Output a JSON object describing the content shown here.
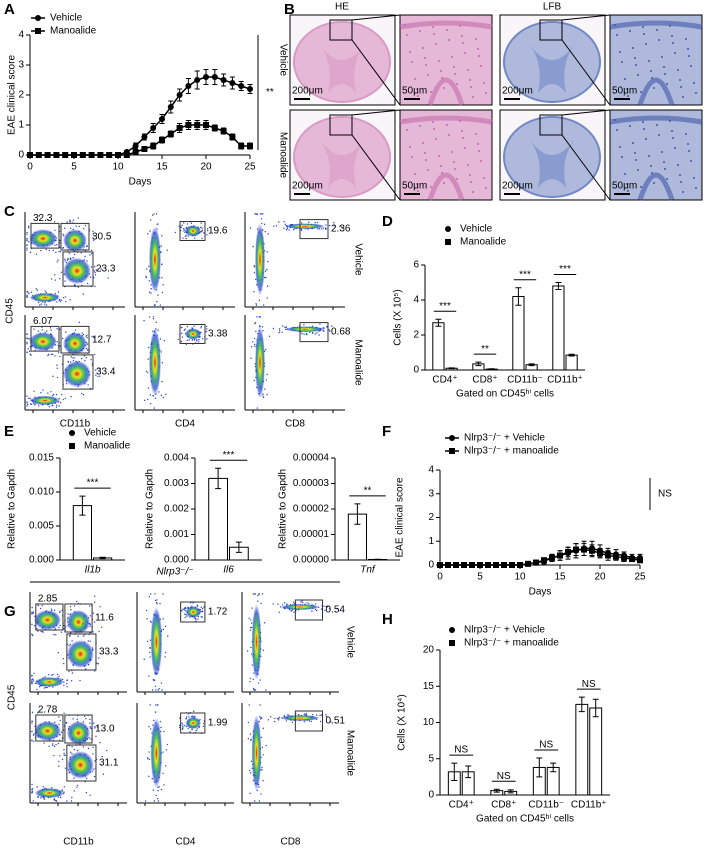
{
  "chart_data": [
    {
      "type": "line",
      "panel": "A",
      "x_label": "Days",
      "y_label": "EAE clinical score",
      "annotation": "**",
      "x": [
        0,
        1,
        2,
        3,
        4,
        5,
        6,
        7,
        8,
        9,
        10,
        11,
        12,
        13,
        14,
        15,
        16,
        17,
        18,
        19,
        20,
        21,
        22,
        23,
        24,
        25
      ],
      "xlim": [
        0,
        25
      ],
      "ylim": [
        0,
        4
      ],
      "xticks": [
        0,
        5,
        10,
        15,
        20,
        25
      ],
      "yticks": [
        0,
        1,
        2,
        3,
        4
      ],
      "series": [
        {
          "name": "Vehicle",
          "marker": "circle",
          "color": "#000000",
          "values": [
            0,
            0,
            0,
            0,
            0,
            0,
            0,
            0,
            0,
            0,
            0,
            0.1,
            0.3,
            0.6,
            0.9,
            1.2,
            1.6,
            2.0,
            2.3,
            2.5,
            2.6,
            2.6,
            2.5,
            2.4,
            2.3,
            2.2
          ],
          "errors": [
            0,
            0,
            0,
            0,
            0,
            0,
            0,
            0,
            0,
            0,
            0,
            0.05,
            0.1,
            0.1,
            0.15,
            0.15,
            0.2,
            0.2,
            0.25,
            0.3,
            0.25,
            0.25,
            0.2,
            0.2,
            0.15,
            0.15
          ]
        },
        {
          "name": "Manoalide",
          "marker": "square",
          "color": "#000000",
          "values": [
            0,
            0,
            0,
            0,
            0,
            0,
            0,
            0,
            0,
            0,
            0,
            0,
            0.1,
            0.2,
            0.3,
            0.5,
            0.7,
            0.9,
            1.0,
            1.0,
            1.0,
            0.9,
            0.8,
            0.6,
            0.3,
            0.3
          ],
          "errors": [
            0,
            0,
            0,
            0,
            0,
            0,
            0,
            0,
            0,
            0,
            0,
            0,
            0.05,
            0.05,
            0.1,
            0.1,
            0.1,
            0.15,
            0.15,
            0.15,
            0.15,
            0.1,
            0.1,
            0.1,
            0.1,
            0.1
          ]
        }
      ]
    },
    {
      "type": "bar",
      "panel": "D",
      "x_label": "Gated on CD45ʰⁱ cells",
      "y_label": "Cells (X 10⁵)",
      "categories": [
        "CD4⁺",
        "CD8⁺",
        "CD11b⁻",
        "CD11b⁺"
      ],
      "ylim": [
        0,
        6
      ],
      "yticks": [
        0,
        2,
        4,
        6
      ],
      "significance": [
        "***",
        "**",
        "***",
        "***"
      ],
      "series": [
        {
          "name": "Vehicle",
          "marker": "circle",
          "values": [
            2.7,
            0.35,
            4.2,
            4.8
          ],
          "errors": [
            0.2,
            0.1,
            0.5,
            0.2
          ]
        },
        {
          "name": "Manoalide",
          "marker": "square",
          "values": [
            0.1,
            0.05,
            0.3,
            0.85
          ],
          "errors": [
            0.02,
            0.02,
            0.05,
            0.05
          ]
        }
      ]
    },
    {
      "type": "bar",
      "panel": "E",
      "y_label": "Relative to Gapdh",
      "categories": [
        "Il1b"
      ],
      "ylim": [
        0,
        0.015
      ],
      "yticks": [
        {
          "value": 0,
          "label": "0.000"
        },
        {
          "value": 0.005,
          "label": "0.005"
        },
        {
          "value": 0.01,
          "label": "0.010"
        },
        {
          "value": 0.015,
          "label": "0.015"
        }
      ],
      "significance": [
        "***"
      ],
      "series": [
        {
          "name": "Vehicle",
          "marker": "circle",
          "values": [
            0.008
          ],
          "errors": [
            0.0014
          ]
        },
        {
          "name": "Manoalide",
          "marker": "square",
          "values": [
            0.0003
          ],
          "errors": [
            0.0001
          ]
        }
      ]
    },
    {
      "type": "bar",
      "y_label": "Relative to Gapdh",
      "categories": [
        "Il6"
      ],
      "ylim": [
        0,
        0.004
      ],
      "yticks": [
        {
          "value": 0,
          "label": "0.000"
        },
        {
          "value": 0.001,
          "label": "0.001"
        },
        {
          "value": 0.002,
          "label": "0.002"
        },
        {
          "value": 0.003,
          "label": "0.003"
        },
        {
          "value": 0.004,
          "label": "0.004"
        }
      ],
      "significance": [
        "***"
      ],
      "series": [
        {
          "marker": "circle",
          "values": [
            0.0032
          ],
          "errors": [
            0.0004
          ]
        },
        {
          "marker": "square",
          "values": [
            0.0005
          ],
          "errors": [
            0.0002
          ]
        }
      ]
    },
    {
      "type": "bar",
      "y_label": "Relative to Gapdh",
      "categories": [
        "Tnf"
      ],
      "ylim": [
        0,
        4e-05
      ],
      "yticks": [
        {
          "value": 0,
          "label": "0.00000"
        },
        {
          "value": 1e-05,
          "label": "0.00001"
        },
        {
          "value": 2e-05,
          "label": "0.00002"
        },
        {
          "value": 3e-05,
          "label": "0.00003"
        },
        {
          "value": 4e-05,
          "label": "0.00004"
        }
      ],
      "significance": [
        "**"
      ],
      "series": [
        {
          "marker": "circle",
          "values": [
            1.8e-05
          ],
          "errors": [
            4e-06
          ]
        },
        {
          "marker": "square",
          "values": [
            2e-07
          ],
          "errors": [
            1e-07
          ]
        }
      ]
    },
    {
      "type": "line",
      "panel": "F",
      "x_label": "Days",
      "y_label": "EAE clinical score",
      "annotation": "NS",
      "x": [
        0,
        1,
        2,
        3,
        4,
        5,
        6,
        7,
        8,
        9,
        10,
        11,
        12,
        13,
        14,
        15,
        16,
        17,
        18,
        19,
        20,
        21,
        22,
        23,
        24,
        25
      ],
      "xlim": [
        0,
        25
      ],
      "ylim": [
        0,
        4
      ],
      "xticks": [
        0,
        5,
        10,
        15,
        20,
        25
      ],
      "yticks": [
        0,
        1,
        2,
        3,
        4
      ],
      "series": [
        {
          "name": "Nlrp3⁻/⁻ + Vehicle",
          "marker": "circle",
          "color": "#000000",
          "values": [
            0,
            0,
            0,
            0,
            0,
            0,
            0,
            0,
            0,
            0,
            0,
            0.05,
            0.1,
            0.15,
            0.3,
            0.4,
            0.5,
            0.6,
            0.7,
            0.7,
            0.6,
            0.5,
            0.45,
            0.4,
            0.3,
            0.3
          ],
          "errors": [
            0,
            0,
            0,
            0,
            0,
            0,
            0,
            0,
            0,
            0,
            0,
            0.05,
            0.1,
            0.1,
            0.15,
            0.2,
            0.25,
            0.3,
            0.3,
            0.3,
            0.25,
            0.2,
            0.2,
            0.15,
            0.15,
            0.15
          ]
        },
        {
          "name": "Nlrp3⁻/⁻ + manoalide",
          "marker": "square",
          "color": "#000000",
          "values": [
            0,
            0,
            0,
            0,
            0,
            0,
            0,
            0,
            0,
            0,
            0,
            0.05,
            0.1,
            0.2,
            0.3,
            0.4,
            0.55,
            0.65,
            0.65,
            0.6,
            0.5,
            0.4,
            0.35,
            0.3,
            0.25,
            0.2
          ],
          "errors": [
            0,
            0,
            0,
            0,
            0,
            0,
            0,
            0,
            0,
            0,
            0,
            0.05,
            0.05,
            0.1,
            0.15,
            0.2,
            0.2,
            0.25,
            0.25,
            0.25,
            0.2,
            0.2,
            0.15,
            0.15,
            0.1,
            0.1
          ]
        }
      ]
    },
    {
      "type": "bar",
      "panel": "H",
      "x_label": "Gated on CD45ʰⁱ cells",
      "y_label": "Cells (X 10⁴)",
      "categories": [
        "CD4⁺",
        "CD8⁺",
        "CD11b⁻",
        "CD11b⁺"
      ],
      "ylim": [
        0,
        20
      ],
      "yticks": [
        0,
        5,
        10,
        15,
        20
      ],
      "significance": [
        "NS",
        "NS",
        "NS",
        "NS"
      ],
      "series": [
        {
          "name": "Nlrp3⁻/⁻ + Vehicle",
          "marker": "circle",
          "values": [
            3.2,
            0.6,
            3.8,
            12.5
          ],
          "errors": [
            1.2,
            0.2,
            1.3,
            1.0
          ]
        },
        {
          "name": "Nlrp3⁻/⁻ + manoalide",
          "marker": "square",
          "values": [
            3.2,
            0.5,
            3.8,
            12.0
          ],
          "errors": [
            0.8,
            0.2,
            0.6,
            1.2
          ]
        }
      ]
    }
  ],
  "histology": {
    "panel": "B",
    "columns": [
      "HE",
      "LFB"
    ],
    "rows": [
      "Vehicle",
      "Manoalide"
    ],
    "scale_bars": [
      "200μm",
      "50μm"
    ]
  },
  "flow": [
    {
      "panel": "C",
      "y_label": "CD45",
      "column_labels": [
        "CD11b",
        "CD4",
        "CD8"
      ],
      "row_labels": [
        "Vehicle",
        "Manoalide"
      ],
      "gates": [
        [
          [
            "32.3",
            "30.5",
            "23.3"
          ],
          [
            "19.6"
          ],
          [
            "2.36"
          ]
        ],
        [
          [
            "6.07",
            "12.7",
            "33.4"
          ],
          [
            "3.38"
          ],
          [
            "0.68"
          ]
        ]
      ]
    },
    {
      "panel": "G",
      "header": "Nlrp3⁻/⁻",
      "y_label": "CD45",
      "column_labels": [
        "CD11b",
        "CD4",
        "CD8"
      ],
      "row_labels": [
        "Vehicle",
        "Manoalide"
      ],
      "gates": [
        [
          [
            "2.85",
            "11.6",
            "33.3"
          ],
          [
            "1.72"
          ],
          [
            "0.54"
          ]
        ],
        [
          [
            "2.78",
            "13.0",
            "31.1"
          ],
          [
            "1.99"
          ],
          [
            "0.51"
          ]
        ]
      ]
    }
  ]
}
